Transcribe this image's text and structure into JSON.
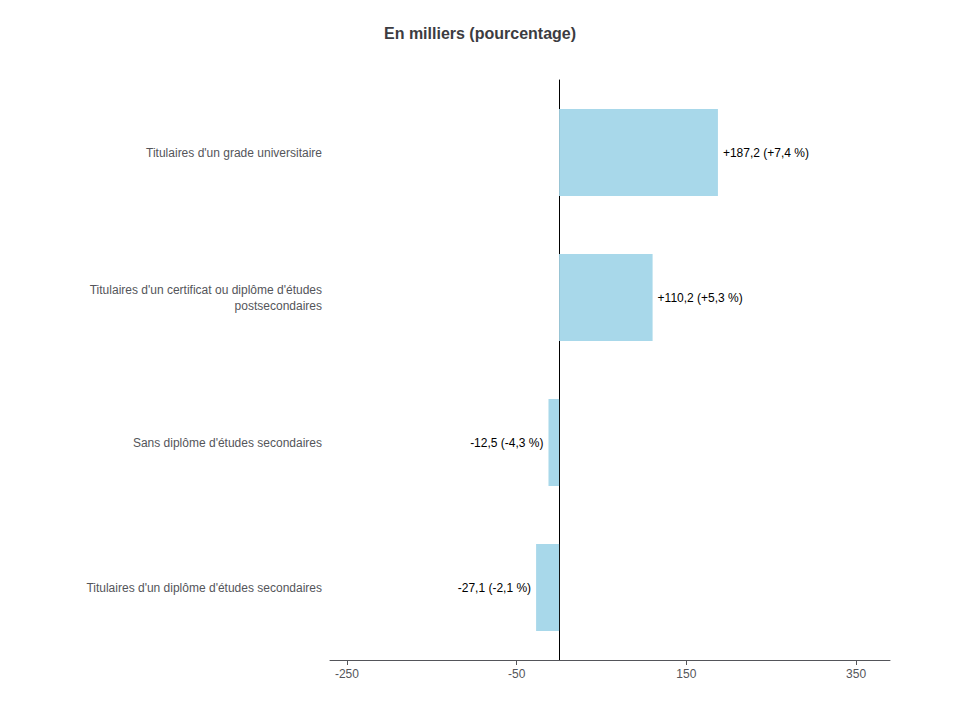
{
  "chart_data": {
    "type": "bar",
    "orientation": "horizontal",
    "title": "En milliers (pourcentage)",
    "categories": [
      "Titulaires d'un diplôme d'études secondaires",
      "Sans diplôme d'études secondaires",
      "Titulaires d'un certificat ou diplôme d'études\npostsecondaires",
      "Titulaires d'un grade universitaire"
    ],
    "values": [
      -27.1,
      -12.5,
      110.2,
      187.2
    ],
    "value_labels": [
      "-27,1 (-2,1 %)",
      "-12,5 (-4,3 %)",
      "+110,2 (+5,3 %)",
      "+187,2 (+7,4 %)"
    ],
    "color": "#A8D8EA",
    "xlim": [
      -270,
      390
    ],
    "xticks": [
      -250,
      -50,
      150,
      350
    ],
    "grid": false,
    "data_labels": true
  }
}
